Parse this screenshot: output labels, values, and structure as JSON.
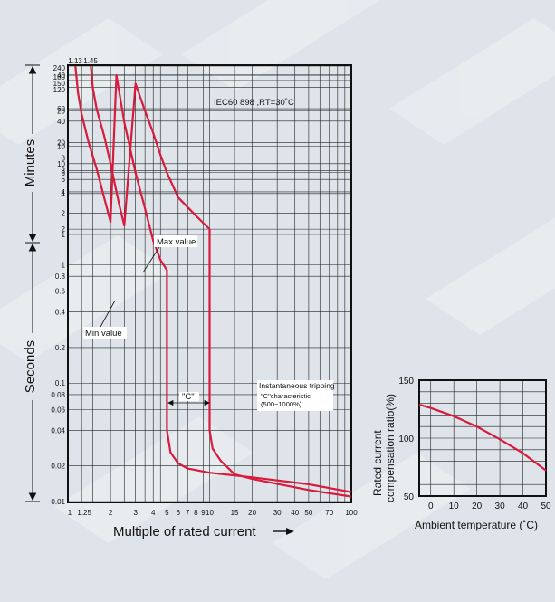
{
  "chart_data": [
    {
      "type": "line",
      "title": "IEC60 898 ,RT=30˚C",
      "xlabel": "Multiple of rated current",
      "xscale": "log",
      "yscale": "log",
      "xlim": [
        1,
        100
      ],
      "ylim": [
        0.01,
        14400
      ],
      "x_tick_labels": [
        "1",
        "1.25",
        "2",
        "3",
        "4",
        "5",
        "6",
        "7",
        "8",
        "9",
        "10",
        "15",
        "20",
        "30",
        "40",
        "50",
        "70",
        "100"
      ],
      "x_tick_values": [
        1,
        1.25,
        2,
        3,
        4,
        5,
        6,
        7,
        8,
        9,
        10,
        15,
        20,
        30,
        40,
        50,
        70,
        100
      ],
      "y_minutes_labels": [
        "240",
        "180",
        "150",
        "120",
        "60",
        "40",
        "20",
        "10",
        "8",
        "6",
        "4",
        "2",
        "1"
      ],
      "y_minutes_values": [
        240,
        180,
        150,
        120,
        60,
        40,
        20,
        10,
        8,
        6,
        4,
        2,
        1
      ],
      "y_seconds_labels": [
        "40",
        "20",
        "10",
        "8",
        "6",
        "4",
        "2",
        "1",
        "0.8",
        "0.6",
        "0.4",
        "0.2",
        "0.1",
        "0.08",
        "0.06",
        "0.04",
        "0.02",
        "0.01"
      ],
      "y_seconds_values": [
        40,
        20,
        10,
        8,
        6,
        4,
        2,
        1,
        0.8,
        0.6,
        0.4,
        0.2,
        0.1,
        0.08,
        0.06,
        0.04,
        0.02,
        0.01
      ],
      "y_axis_labels": [
        "Minutes",
        "Seconds"
      ],
      "top_labels": [
        {
          "text": "1.13",
          "x": 1.13
        },
        {
          "text": "1.45",
          "x": 1.45
        }
      ],
      "annotations": {
        "max_label": "Max.value",
        "min_label": "Min.value",
        "c_label": "\"C\"",
        "inst_title": "Instantaneous tripping",
        "inst_line2": "\"C\"characteristic",
        "inst_line3": "(500~1000%)"
      },
      "series": [
        {
          "name": "Max.value",
          "points": [
            [
              1.45,
              14400
            ],
            [
              1.5,
              7000
            ],
            [
              1.6,
              3500
            ],
            [
              1.8,
              1500
            ],
            [
              2,
              600
            ],
            [
              2.3,
              160
            ],
            [
              2.5,
              80
            ],
            [
              3,
              34
            ],
            [
              3.5,
              20
            ],
            [
              4,
              13
            ],
            [
              4.5,
              8.5
            ],
            [
              5,
              6
            ],
            [
              6,
              3.7
            ],
            [
              8,
              2.6
            ],
            [
              10,
              2
            ],
            [
              10,
              0.04
            ],
            [
              10.5,
              0.028
            ],
            [
              12,
              0.022
            ],
            [
              15,
              0.017
            ],
            [
              20,
              0.0155
            ],
            [
              50,
              0.0125
            ],
            [
              100,
              0.011
            ]
          ]
        },
        {
          "name": "Min.value",
          "points": [
            [
              1.13,
              14400
            ],
            [
              1.18,
              6000
            ],
            [
              1.25,
              3000
            ],
            [
              1.4,
              1200
            ],
            [
              1.6,
              500
            ],
            [
              1.8,
              200
            ],
            [
              2,
              90
            ],
            [
              2.2,
              40
            ],
            [
              2.5,
              16
            ],
            [
              3,
              6
            ],
            [
              3.5,
              3
            ],
            [
              4,
              1.6
            ],
            [
              4.5,
              1.1
            ],
            [
              5,
              0.9
            ],
            [
              5,
              0.04
            ],
            [
              5.3,
              0.026
            ],
            [
              6,
              0.021
            ],
            [
              7,
              0.019
            ],
            [
              10,
              0.0175
            ],
            [
              20,
              0.016
            ],
            [
              50,
              0.014
            ],
            [
              100,
              0.012
            ]
          ]
        }
      ]
    },
    {
      "type": "line",
      "xlabel": "Ambient temperature (˚C)",
      "ylabel_line1": "Rated current",
      "ylabel_line2": "compensation ratio(%)",
      "xlim": [
        -5,
        50
      ],
      "ylim": [
        50,
        150
      ],
      "x_ticks": [
        0,
        10,
        20,
        30,
        40,
        50
      ],
      "y_ticks": [
        50,
        100,
        150
      ],
      "series": [
        {
          "name": "",
          "points": [
            [
              -5,
              129
            ],
            [
              0,
              126
            ],
            [
              10,
              119
            ],
            [
              20,
              110
            ],
            [
              30,
              99
            ],
            [
              40,
              87
            ],
            [
              50,
              72
            ]
          ]
        }
      ]
    }
  ]
}
